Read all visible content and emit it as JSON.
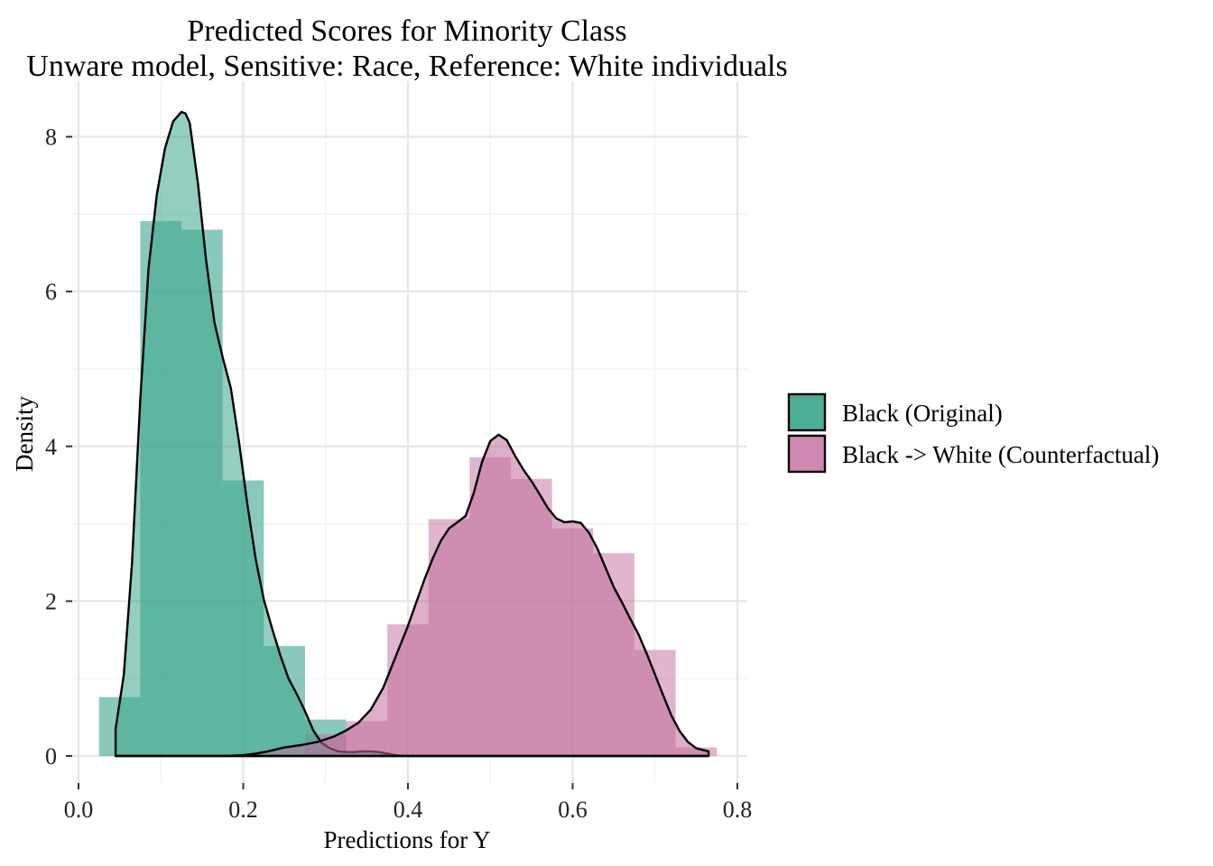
{
  "chart_data": {
    "type": "histogram-density",
    "title_line1": "Predicted Scores for Minority Class",
    "title_line2": "Unware model, Sensitive: Race, Reference: White individuals",
    "xlabel": "Predictions for Y",
    "ylabel": "Density",
    "xlim": [
      -0.005,
      0.81
    ],
    "ylim": [
      -0.35,
      8.7
    ],
    "x_ticks": [
      0.0,
      0.2,
      0.4,
      0.6,
      0.8
    ],
    "x_tick_labels": [
      "0.0",
      "0.2",
      "0.4",
      "0.6",
      "0.8"
    ],
    "y_ticks": [
      0,
      2,
      4,
      6,
      8
    ],
    "y_tick_labels": [
      "0",
      "2",
      "4",
      "6",
      "8"
    ],
    "grid": true,
    "legend_position": "right",
    "series": [
      {
        "name": "Black (Original)",
        "color": "#3aa58d",
        "histogram": {
          "bin_width": 0.05,
          "bins": [
            {
              "x0": 0.025,
              "x1": 0.075,
              "density": 0.76
            },
            {
              "x0": 0.075,
              "x1": 0.125,
              "density": 6.91
            },
            {
              "x0": 0.125,
              "x1": 0.175,
              "density": 6.8
            },
            {
              "x0": 0.175,
              "x1": 0.225,
              "density": 3.56
            },
            {
              "x0": 0.225,
              "x1": 0.275,
              "density": 1.42
            },
            {
              "x0": 0.275,
              "x1": 0.325,
              "density": 0.47
            },
            {
              "x0": 0.325,
              "x1": 0.375,
              "density": 0.05
            }
          ]
        },
        "density_x": [
          0.045,
          0.055,
          0.065,
          0.075,
          0.085,
          0.095,
          0.105,
          0.115,
          0.125,
          0.13,
          0.135,
          0.145,
          0.155,
          0.165,
          0.175,
          0.185,
          0.195,
          0.205,
          0.215,
          0.225,
          0.235,
          0.245,
          0.255,
          0.265,
          0.275,
          0.285,
          0.295,
          0.305,
          0.315,
          0.325,
          0.335,
          0.345,
          0.355,
          0.365,
          0.375,
          0.385,
          0.395,
          0.405,
          0.42,
          0.45,
          0.5,
          0.6,
          0.7,
          0.765
        ],
        "density_y": [
          0.35,
          1.05,
          2.5,
          4.6,
          6.3,
          7.25,
          7.85,
          8.2,
          8.32,
          8.3,
          8.18,
          7.4,
          6.4,
          5.6,
          5.15,
          4.75,
          4.05,
          3.25,
          2.55,
          2.02,
          1.65,
          1.3,
          1.0,
          0.8,
          0.58,
          0.33,
          0.17,
          0.1,
          0.06,
          0.05,
          0.05,
          0.06,
          0.06,
          0.05,
          0.03,
          0.01,
          0.0,
          0.0,
          0.0,
          0.0,
          0.0,
          0.0,
          0.0,
          0.0
        ]
      },
      {
        "name": "Black -> White (Counterfactual)",
        "color": "#c26c9c",
        "histogram": {
          "bin_width": 0.05,
          "bins": [
            {
              "x0": 0.275,
              "x1": 0.325,
              "density": 0.28
            },
            {
              "x0": 0.325,
              "x1": 0.375,
              "density": 0.45
            },
            {
              "x0": 0.375,
              "x1": 0.425,
              "density": 1.7
            },
            {
              "x0": 0.425,
              "x1": 0.475,
              "density": 3.06
            },
            {
              "x0": 0.475,
              "x1": 0.525,
              "density": 3.86
            },
            {
              "x0": 0.525,
              "x1": 0.575,
              "density": 3.58
            },
            {
              "x0": 0.575,
              "x1": 0.625,
              "density": 2.94
            },
            {
              "x0": 0.625,
              "x1": 0.675,
              "density": 2.62
            },
            {
              "x0": 0.675,
              "x1": 0.725,
              "density": 1.37
            },
            {
              "x0": 0.725,
              "x1": 0.775,
              "density": 0.11
            }
          ]
        },
        "density_x": [
          0.045,
          0.1,
          0.15,
          0.18,
          0.2,
          0.215,
          0.23,
          0.25,
          0.27,
          0.29,
          0.31,
          0.325,
          0.34,
          0.355,
          0.37,
          0.385,
          0.4,
          0.41,
          0.42,
          0.43,
          0.44,
          0.45,
          0.46,
          0.47,
          0.48,
          0.49,
          0.5,
          0.51,
          0.52,
          0.53,
          0.54,
          0.55,
          0.56,
          0.57,
          0.58,
          0.59,
          0.6,
          0.61,
          0.62,
          0.63,
          0.64,
          0.65,
          0.66,
          0.67,
          0.68,
          0.69,
          0.7,
          0.71,
          0.72,
          0.73,
          0.74,
          0.75,
          0.765
        ],
        "density_y": [
          0.0,
          0.0,
          0.0,
          0.0,
          0.01,
          0.03,
          0.06,
          0.11,
          0.14,
          0.18,
          0.25,
          0.33,
          0.43,
          0.6,
          0.88,
          1.28,
          1.68,
          1.98,
          2.28,
          2.55,
          2.78,
          2.94,
          3.02,
          3.1,
          3.4,
          3.8,
          4.07,
          4.15,
          4.08,
          3.88,
          3.7,
          3.55,
          3.38,
          3.2,
          3.07,
          3.02,
          3.03,
          3.01,
          2.88,
          2.68,
          2.43,
          2.18,
          1.98,
          1.77,
          1.57,
          1.32,
          1.05,
          0.78,
          0.52,
          0.32,
          0.18,
          0.1,
          0.06
        ]
      }
    ]
  }
}
